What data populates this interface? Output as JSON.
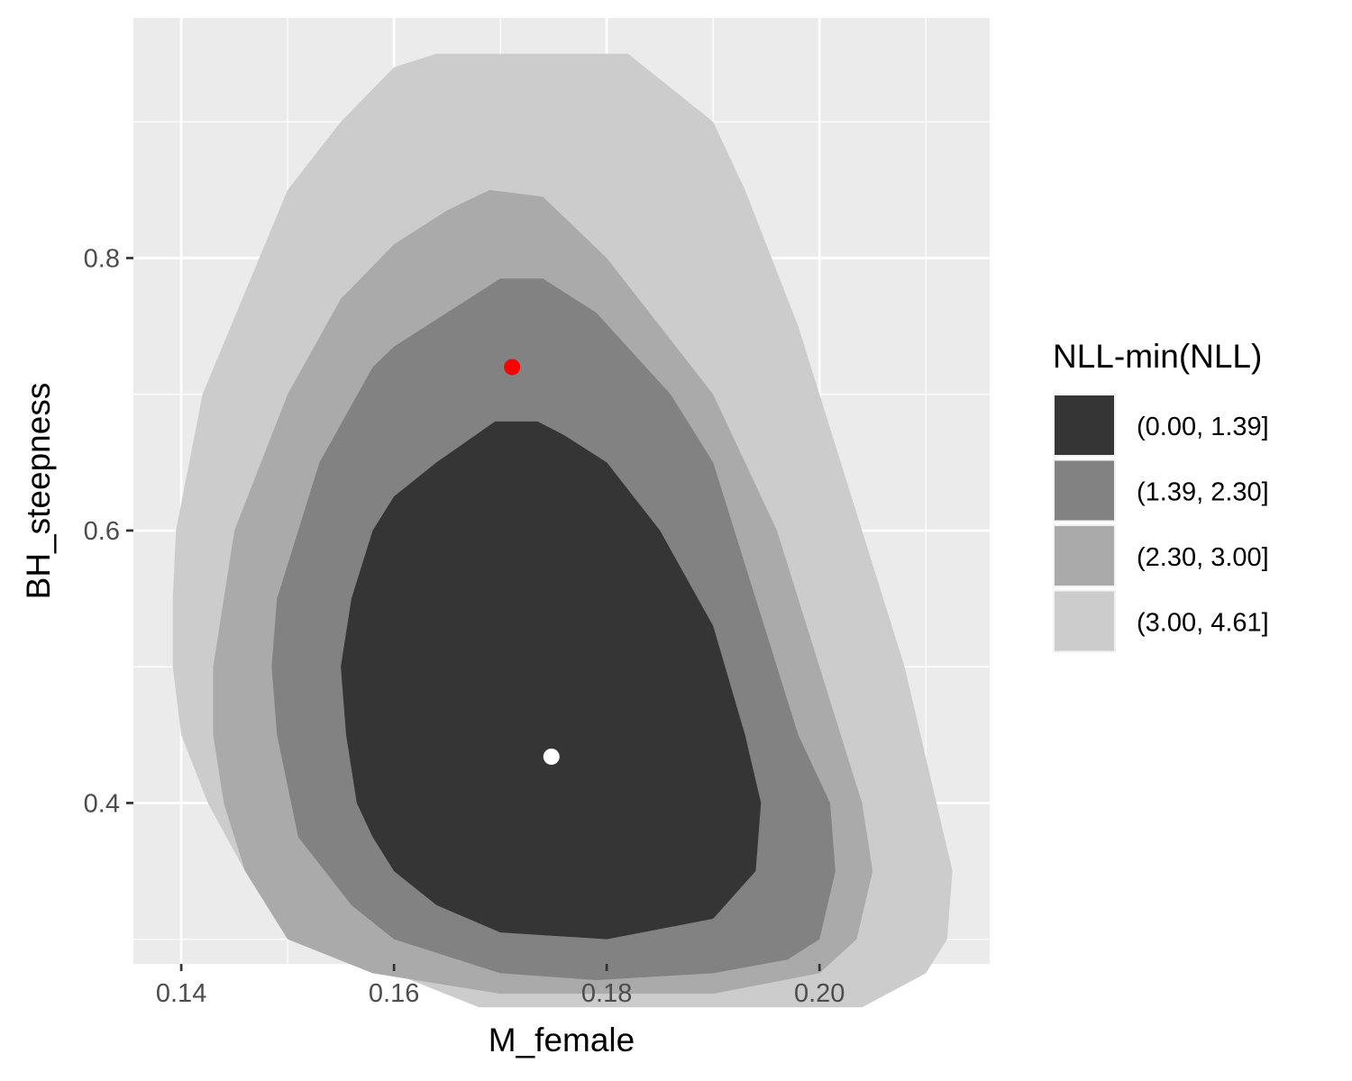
{
  "chart_data": {
    "type": "contour",
    "xlabel": "M_female",
    "ylabel": "BH_steepness",
    "xlim": [
      0.1355,
      0.216
    ],
    "ylim": [
      0.2819,
      0.9762
    ],
    "x_ticks": [
      0.14,
      0.16,
      0.18,
      0.2
    ],
    "x_tick_labels": [
      "0.14",
      "0.16",
      "0.18",
      "0.20"
    ],
    "y_ticks": [
      0.4,
      0.6,
      0.8
    ],
    "y_tick_labels": [
      "0.4",
      "0.6",
      "0.8"
    ],
    "grid": true,
    "legend": {
      "title": "NLL-min(NLL)",
      "position": "right",
      "entries": [
        {
          "label": "(0.00, 1.39]",
          "color": "#353535"
        },
        {
          "label": "(1.39, 2.30]",
          "color": "#828282"
        },
        {
          "label": "(2.30, 3.00]",
          "color": "#aaaaaa"
        },
        {
          "label": "(3.00, 4.61]",
          "color": "#cccccc"
        }
      ]
    },
    "contours": [
      {
        "level": "(3.00, 4.61]",
        "color": "#cccccc",
        "points": [
          [
            0.164,
            0.95
          ],
          [
            0.182,
            0.95
          ],
          [
            0.19,
            0.9
          ],
          [
            0.193,
            0.85
          ],
          [
            0.198,
            0.75
          ],
          [
            0.2,
            0.7
          ],
          [
            0.204,
            0.6
          ],
          [
            0.208,
            0.5
          ],
          [
            0.211,
            0.4
          ],
          [
            0.2125,
            0.35
          ],
          [
            0.212,
            0.3
          ],
          [
            0.21,
            0.275
          ],
          [
            0.204,
            0.25
          ],
          [
            0.168,
            0.25
          ],
          [
            0.16,
            0.275
          ],
          [
            0.152,
            0.3
          ],
          [
            0.146,
            0.35
          ],
          [
            0.1425,
            0.4
          ],
          [
            0.14,
            0.45
          ],
          [
            0.1392,
            0.5
          ],
          [
            0.1392,
            0.55
          ],
          [
            0.1395,
            0.6
          ],
          [
            0.142,
            0.7
          ],
          [
            0.15,
            0.85
          ],
          [
            0.155,
            0.9
          ],
          [
            0.16,
            0.94
          ]
        ]
      },
      {
        "level": "(2.30, 3.00]",
        "color": "#aaaaaa",
        "points": [
          [
            0.169,
            0.85
          ],
          [
            0.174,
            0.845
          ],
          [
            0.18,
            0.8
          ],
          [
            0.19,
            0.7
          ],
          [
            0.196,
            0.6
          ],
          [
            0.2,
            0.5
          ],
          [
            0.204,
            0.4
          ],
          [
            0.205,
            0.35
          ],
          [
            0.2035,
            0.3
          ],
          [
            0.2,
            0.275
          ],
          [
            0.19,
            0.26
          ],
          [
            0.17,
            0.26
          ],
          [
            0.158,
            0.275
          ],
          [
            0.15,
            0.3
          ],
          [
            0.146,
            0.35
          ],
          [
            0.144,
            0.4
          ],
          [
            0.143,
            0.45
          ],
          [
            0.143,
            0.5
          ],
          [
            0.145,
            0.6
          ],
          [
            0.15,
            0.7
          ],
          [
            0.155,
            0.77
          ],
          [
            0.16,
            0.81
          ],
          [
            0.165,
            0.835
          ]
        ]
      },
      {
        "level": "(1.39, 2.30]",
        "color": "#828282",
        "points": [
          [
            0.17,
            0.785
          ],
          [
            0.174,
            0.785
          ],
          [
            0.179,
            0.76
          ],
          [
            0.186,
            0.7
          ],
          [
            0.19,
            0.65
          ],
          [
            0.194,
            0.55
          ],
          [
            0.198,
            0.45
          ],
          [
            0.201,
            0.4
          ],
          [
            0.2015,
            0.35
          ],
          [
            0.2,
            0.3
          ],
          [
            0.197,
            0.285
          ],
          [
            0.19,
            0.275
          ],
          [
            0.179,
            0.27
          ],
          [
            0.17,
            0.275
          ],
          [
            0.16,
            0.3
          ],
          [
            0.156,
            0.325
          ],
          [
            0.151,
            0.375
          ],
          [
            0.149,
            0.45
          ],
          [
            0.1485,
            0.5
          ],
          [
            0.149,
            0.55
          ],
          [
            0.153,
            0.65
          ],
          [
            0.158,
            0.72
          ],
          [
            0.16,
            0.735
          ],
          [
            0.165,
            0.76
          ]
        ]
      },
      {
        "level": "(0.00, 1.39]",
        "color": "#353535",
        "points": [
          [
            0.1695,
            0.68
          ],
          [
            0.1735,
            0.68
          ],
          [
            0.176,
            0.67
          ],
          [
            0.18,
            0.65
          ],
          [
            0.185,
            0.6
          ],
          [
            0.19,
            0.53
          ],
          [
            0.193,
            0.45
          ],
          [
            0.1945,
            0.4
          ],
          [
            0.194,
            0.35
          ],
          [
            0.19,
            0.315
          ],
          [
            0.18,
            0.3
          ],
          [
            0.17,
            0.305
          ],
          [
            0.164,
            0.325
          ],
          [
            0.16,
            0.35
          ],
          [
            0.158,
            0.375
          ],
          [
            0.1565,
            0.4
          ],
          [
            0.1555,
            0.45
          ],
          [
            0.155,
            0.5
          ],
          [
            0.156,
            0.55
          ],
          [
            0.158,
            0.6
          ],
          [
            0.16,
            0.625
          ],
          [
            0.164,
            0.65
          ]
        ]
      }
    ],
    "points": [
      {
        "name": "red",
        "x": 0.1711,
        "y": 0.72,
        "color": "#ff0000"
      },
      {
        "name": "white",
        "x": 0.1748,
        "y": 0.434,
        "color": "#ffffff"
      }
    ]
  }
}
